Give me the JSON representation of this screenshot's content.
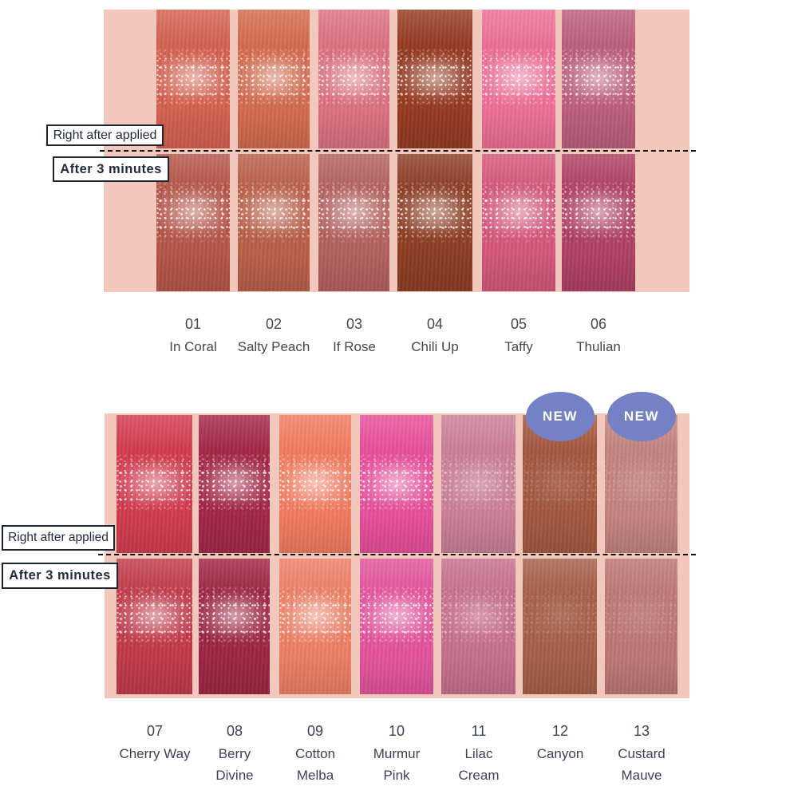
{
  "palette": {
    "page_bg": "#ffffff",
    "section_bg": "#f3c8bc",
    "dash_color": "#111111",
    "box_border": "#1f2633",
    "box_text": "#222b3e",
    "badge_bg": "#7581c5",
    "badge_text_color": "#ffffff",
    "caption_color_top": "#46474a",
    "caption_color_bottom": "#3b4256"
  },
  "row_labels": {
    "row1": "Right after applied",
    "row2": "After 3 minutes"
  },
  "badge_label": "NEW",
  "sections": [
    {
      "name": "shades-01-06",
      "swatches": [
        {
          "id": "01",
          "name": "In Coral",
          "name_lines": [
            "In Coral"
          ],
          "color_right_after": "#d5614f",
          "color_after_3min": "#b65549",
          "is_new": false,
          "sheen": "high"
        },
        {
          "id": "02",
          "name": "Salty Peach",
          "name_lines": [
            "Salty Peach"
          ],
          "color_right_after": "#d36b4e",
          "color_after_3min": "#ba5f48",
          "is_new": false,
          "sheen": "high"
        },
        {
          "id": "03",
          "name": "If Rose",
          "name_lines": [
            "If Rose"
          ],
          "color_right_after": "#dd7280",
          "color_after_3min": "#b4615e",
          "is_new": false,
          "sheen": "high"
        },
        {
          "id": "04",
          "name": "Chili Up",
          "name_lines": [
            "Chili Up"
          ],
          "color_right_after": "#963a22",
          "color_after_3min": "#8e3d24",
          "is_new": false,
          "sheen": "high"
        },
        {
          "id": "05",
          "name": "Taffy",
          "name_lines": [
            "Taffy"
          ],
          "color_right_after": "#ee6f97",
          "color_after_3min": "#d5577b",
          "is_new": false,
          "sheen": "high"
        },
        {
          "id": "06",
          "name": "Thulian",
          "name_lines": [
            "Thulian"
          ],
          "color_right_after": "#bd5e7e",
          "color_after_3min": "#b04065",
          "is_new": false,
          "sheen": "high"
        }
      ]
    },
    {
      "name": "shades-07-13",
      "swatches": [
        {
          "id": "07",
          "name": "Cherry Way",
          "name_lines": [
            "Cherry Way"
          ],
          "color_right_after": "#d33b4e",
          "color_after_3min": "#c23a4a",
          "is_new": false,
          "sheen": "high"
        },
        {
          "id": "08",
          "name": "Berry Divine",
          "name_lines": [
            "Berry",
            "Divine"
          ],
          "color_right_after": "#a42647",
          "color_after_3min": "#9e2543",
          "is_new": false,
          "sheen": "high"
        },
        {
          "id": "09",
          "name": "Cotton Melba",
          "name_lines": [
            "Cotton",
            "Melba"
          ],
          "color_right_after": "#f37b60",
          "color_after_3min": "#ee7f66",
          "is_new": false,
          "sheen": "high"
        },
        {
          "id": "10",
          "name": "Murmur Pink",
          "name_lines": [
            "Murmur",
            "Pink"
          ],
          "color_right_after": "#e84f9a",
          "color_after_3min": "#e4549c",
          "is_new": false,
          "sheen": "high"
        },
        {
          "id": "11",
          "name": "Lilac Cream",
          "name_lines": [
            "Lilac",
            "Cream"
          ],
          "color_right_after": "#cb7f98",
          "color_after_3min": "#c8708e",
          "is_new": false,
          "sheen": "med"
        },
        {
          "id": "12",
          "name": "Canyon",
          "name_lines": [
            "Canyon"
          ],
          "color_right_after": "#a4583f",
          "color_after_3min": "#a65f49",
          "is_new": true,
          "sheen": "low"
        },
        {
          "id": "13",
          "name": "Custard Mauve",
          "name_lines": [
            "Custard",
            "Mauve"
          ],
          "color_right_after": "#c48480",
          "color_after_3min": "#bd7775",
          "is_new": true,
          "sheen": "low"
        }
      ]
    }
  ]
}
